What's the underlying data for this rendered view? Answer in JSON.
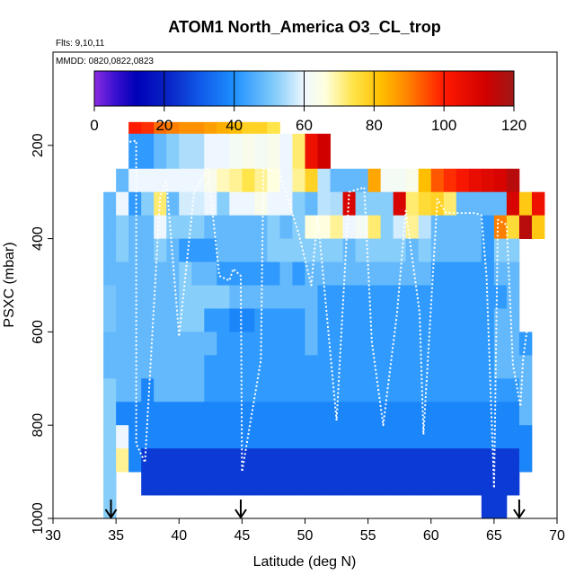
{
  "chart_data": {
    "type": "heatmap",
    "title": "ATOM1 North_America O3_CL_trop",
    "annotations": {
      "flights": "Flts: 9,10,11",
      "dates": "MMDD: 0820,0822,0823"
    },
    "xlabel": "Latitude (deg N)",
    "ylabel": "PSXC (mbar)",
    "xlim": [
      30,
      70
    ],
    "ylim": [
      1000,
      0
    ],
    "x_ticks": [
      30,
      35,
      40,
      45,
      50,
      55,
      60,
      65,
      70
    ],
    "y_ticks": [
      200,
      400,
      600,
      800,
      1000
    ],
    "colorbar": {
      "min": 0,
      "max": 120,
      "ticks": [
        0,
        20,
        40,
        60,
        80,
        100,
        120
      ],
      "stops": [
        [
          0,
          "#8a2be2"
        ],
        [
          6,
          "#3a10d0"
        ],
        [
          12,
          "#0000b8"
        ],
        [
          22,
          "#0a28c8"
        ],
        [
          30,
          "#1058e8"
        ],
        [
          40,
          "#1e90ff"
        ],
        [
          52,
          "#87cefa"
        ],
        [
          60,
          "#eef7ff"
        ],
        [
          66,
          "#ffffdf"
        ],
        [
          74,
          "#ffe44a"
        ],
        [
          82,
          "#ffbf00"
        ],
        [
          90,
          "#ff8000"
        ],
        [
          100,
          "#ff1a00"
        ],
        [
          112,
          "#d00000"
        ],
        [
          120,
          "#a01818"
        ]
      ]
    },
    "grid": {
      "lat_start": 34,
      "lat_step": 1,
      "row_bottoms": [
        175,
        250,
        300,
        350,
        400,
        450,
        500,
        550,
        600,
        650,
        700,
        750,
        800,
        850,
        900,
        950,
        1000
      ]
    },
    "columns": [
      {
        "lat": 34,
        "values": [
          null,
          null,
          null,
          48,
          48,
          48,
          48,
          50,
          50,
          48,
          48,
          52,
          52,
          52,
          52,
          52,
          52
        ]
      },
      {
        "lat": 35,
        "values": [
          null,
          null,
          48,
          60,
          52,
          52,
          48,
          48,
          48,
          48,
          48,
          48,
          38,
          60,
          70,
          null,
          null
        ]
      },
      {
        "lat": 36,
        "values": [
          100,
          42,
          60,
          42,
          48,
          48,
          48,
          48,
          48,
          48,
          48,
          48,
          38,
          38,
          38,
          null,
          null
        ]
      },
      {
        "lat": 37,
        "values": [
          98,
          42,
          60,
          52,
          48,
          48,
          48,
          48,
          48,
          48,
          48,
          38,
          38,
          38,
          25,
          25,
          null
        ]
      },
      {
        "lat": 38,
        "values": [
          92,
          48,
          60,
          72,
          60,
          52,
          48,
          48,
          48,
          48,
          48,
          48,
          38,
          38,
          25,
          25,
          null
        ]
      },
      {
        "lat": 39,
        "values": [
          90,
          52,
          60,
          48,
          52,
          48,
          48,
          48,
          48,
          48,
          48,
          48,
          38,
          38,
          25,
          25,
          null
        ]
      },
      {
        "lat": 40,
        "values": [
          88,
          55,
          60,
          58,
          52,
          42,
          52,
          52,
          52,
          48,
          48,
          48,
          38,
          38,
          25,
          25,
          null
        ]
      },
      {
        "lat": 41,
        "values": [
          88,
          55,
          60,
          58,
          52,
          42,
          48,
          52,
          52,
          48,
          48,
          48,
          38,
          38,
          25,
          25,
          null
        ]
      },
      {
        "lat": 42,
        "values": [
          86,
          60,
          64,
          60,
          48,
          42,
          48,
          52,
          42,
          48,
          42,
          42,
          38,
          38,
          25,
          25,
          null
        ]
      },
      {
        "lat": 43,
        "values": [
          84,
          60,
          68,
          52,
          48,
          48,
          42,
          52,
          42,
          42,
          42,
          42,
          38,
          38,
          25,
          25,
          null
        ]
      },
      {
        "lat": 44,
        "values": [
          82,
          62,
          70,
          60,
          48,
          48,
          42,
          48,
          38,
          42,
          42,
          42,
          38,
          38,
          25,
          25,
          null
        ]
      },
      {
        "lat": 45,
        "values": [
          78,
          64,
          74,
          60,
          48,
          48,
          42,
          48,
          38,
          42,
          42,
          42,
          38,
          38,
          25,
          25,
          null
        ]
      },
      {
        "lat": 46,
        "values": [
          78,
          62,
          70,
          64,
          48,
          48,
          42,
          48,
          42,
          42,
          42,
          42,
          38,
          38,
          25,
          25,
          null
        ]
      },
      {
        "lat": 47,
        "values": [
          74,
          64,
          66,
          60,
          52,
          52,
          42,
          48,
          42,
          42,
          42,
          42,
          38,
          38,
          25,
          25,
          null
        ]
      },
      {
        "lat": 48,
        "values": [
          null,
          60,
          60,
          60,
          48,
          52,
          48,
          48,
          42,
          42,
          42,
          42,
          38,
          38,
          25,
          25,
          null
        ]
      },
      {
        "lat": 49,
        "values": [
          null,
          72,
          70,
          52,
          52,
          52,
          42,
          48,
          42,
          42,
          42,
          42,
          38,
          38,
          25,
          25,
          null
        ]
      },
      {
        "lat": 50,
        "values": [
          null,
          104,
          78,
          48,
          66,
          52,
          48,
          48,
          48,
          48,
          42,
          42,
          38,
          38,
          25,
          25,
          null
        ]
      },
      {
        "lat": 51,
        "values": [
          null,
          112,
          56,
          56,
          66,
          52,
          48,
          42,
          42,
          42,
          42,
          42,
          38,
          38,
          25,
          25,
          null
        ]
      },
      {
        "lat": 52,
        "values": [
          null,
          null,
          48,
          55,
          70,
          52,
          48,
          42,
          42,
          42,
          42,
          42,
          38,
          38,
          25,
          25,
          null
        ]
      },
      {
        "lat": 53,
        "values": [
          null,
          null,
          48,
          110,
          60,
          48,
          48,
          42,
          42,
          42,
          42,
          42,
          38,
          38,
          25,
          25,
          null
        ]
      },
      {
        "lat": 54,
        "values": [
          null,
          null,
          48,
          52,
          62,
          52,
          48,
          42,
          42,
          42,
          42,
          42,
          38,
          38,
          25,
          25,
          null
        ]
      },
      {
        "lat": 55,
        "values": [
          null,
          null,
          85,
          52,
          72,
          52,
          48,
          42,
          42,
          42,
          42,
          42,
          38,
          38,
          25,
          25,
          null
        ]
      },
      {
        "lat": 56,
        "values": [
          null,
          null,
          62,
          52,
          52,
          52,
          48,
          42,
          42,
          42,
          42,
          42,
          38,
          38,
          25,
          25,
          null
        ]
      },
      {
        "lat": 57,
        "values": [
          null,
          null,
          62,
          110,
          58,
          52,
          48,
          42,
          42,
          42,
          42,
          42,
          38,
          38,
          25,
          25,
          null
        ]
      },
      {
        "lat": 58,
        "values": [
          null,
          null,
          64,
          72,
          70,
          48,
          48,
          42,
          42,
          42,
          42,
          42,
          38,
          38,
          25,
          25,
          null
        ]
      },
      {
        "lat": 59,
        "values": [
          null,
          null,
          82,
          76,
          56,
          52,
          48,
          42,
          42,
          42,
          42,
          42,
          38,
          38,
          25,
          25,
          null
        ]
      },
      {
        "lat": 60,
        "values": [
          null,
          null,
          94,
          78,
          48,
          48,
          42,
          42,
          42,
          42,
          42,
          42,
          38,
          38,
          25,
          25,
          null
        ]
      },
      {
        "lat": 61,
        "values": [
          null,
          null,
          98,
          72,
          48,
          48,
          42,
          42,
          42,
          42,
          42,
          42,
          38,
          38,
          25,
          25,
          null
        ]
      },
      {
        "lat": 62,
        "values": [
          null,
          null,
          102,
          48,
          48,
          48,
          42,
          42,
          42,
          42,
          42,
          42,
          38,
          38,
          25,
          25,
          null
        ]
      },
      {
        "lat": 63,
        "values": [
          null,
          null,
          106,
          48,
          48,
          48,
          42,
          42,
          42,
          42,
          42,
          42,
          38,
          38,
          25,
          25,
          null
        ]
      },
      {
        "lat": 64,
        "values": [
          null,
          null,
          108,
          48,
          42,
          42,
          42,
          42,
          42,
          42,
          42,
          42,
          38,
          38,
          25,
          25,
          25
        ]
      },
      {
        "lat": 65,
        "values": [
          null,
          null,
          110,
          48,
          90,
          52,
          48,
          42,
          48,
          48,
          48,
          42,
          38,
          38,
          25,
          25,
          25
        ]
      },
      {
        "lat": 66,
        "values": [
          null,
          null,
          116,
          110,
          76,
          52,
          48,
          48,
          48,
          48,
          48,
          42,
          38,
          38,
          25,
          25,
          null
        ]
      },
      {
        "lat": 67,
        "values": [
          null,
          null,
          null,
          80,
          116,
          null,
          null,
          null,
          null,
          42,
          48,
          48,
          48,
          38,
          38,
          null,
          null
        ]
      },
      {
        "lat": 68,
        "values": [
          null,
          null,
          null,
          104,
          80,
          null,
          null,
          null,
          null,
          null,
          null,
          null,
          null,
          null,
          null,
          null,
          null
        ]
      }
    ],
    "flight_track": [
      [
        34.5,
        200
      ],
      [
        36.6,
        190
      ],
      [
        36.6,
        840
      ],
      [
        37.3,
        880
      ],
      [
        38.5,
        310
      ],
      [
        39.0,
        275
      ],
      [
        40.0,
        610
      ],
      [
        41.2,
        300
      ],
      [
        42.3,
        250
      ],
      [
        43.2,
        480
      ],
      [
        44.0,
        490
      ],
      [
        44.3,
        465
      ],
      [
        44.9,
        480
      ],
      [
        45.0,
        900
      ],
      [
        46.5,
        660
      ],
      [
        46.7,
        250
      ],
      [
        48.0,
        260
      ],
      [
        49.5,
        390
      ],
      [
        50.5,
        500
      ],
      [
        51.0,
        350
      ],
      [
        52.5,
        790
      ],
      [
        53.5,
        300
      ],
      [
        54.7,
        290
      ],
      [
        55.3,
        620
      ],
      [
        56.2,
        800
      ],
      [
        57.3,
        560
      ],
      [
        58.0,
        340
      ],
      [
        59.1,
        560
      ],
      [
        59.4,
        820
      ],
      [
        60.5,
        315
      ],
      [
        61.2,
        345
      ],
      [
        63.5,
        345
      ],
      [
        64.0,
        350
      ],
      [
        64.4,
        480
      ],
      [
        65.0,
        935
      ],
      [
        65.3,
        360
      ],
      [
        66.0,
        370
      ],
      [
        66.5,
        670
      ],
      [
        67.1,
        760
      ],
      [
        67.3,
        660
      ],
      [
        68.0,
        520
      ]
    ],
    "flight_markers_lat": [
      34.6,
      44.9,
      67.0
    ]
  }
}
